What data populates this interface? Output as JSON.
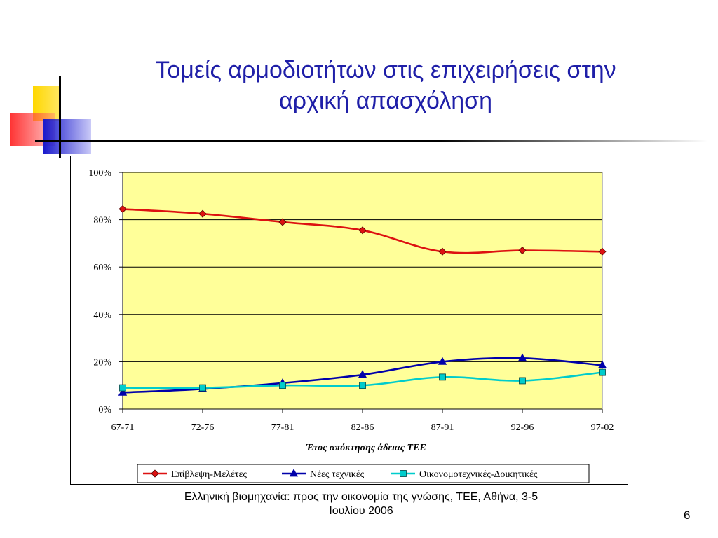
{
  "slide": {
    "title_line1": "Τομείς αρμοδιοτήτων στις επιχειρήσεις στην",
    "title_line2": "αρχική απασχόληση",
    "footer_line1": "Ελληνική βιομηχανία: προς την οικονομία της γνώσης, ΤΕΕ, Αθήνα, 3-5",
    "footer_line2": "Ιουλίου 2006",
    "page_number": "6",
    "colors": {
      "title": "#1f1fa8",
      "deco_yellow": "#ffd700",
      "deco_red": "#ff3333",
      "deco_blue": "#2222cc"
    }
  },
  "chart_data": {
    "type": "line",
    "categories": [
      "67-71",
      "72-76",
      "77-81",
      "82-86",
      "87-91",
      "92-96",
      "97-02"
    ],
    "xlabel": "Έτος απόκτησης άδειας ΤΕΕ",
    "ylabel": "",
    "ylim": [
      0,
      100
    ],
    "yticks": [
      "0%",
      "20%",
      "40%",
      "60%",
      "80%",
      "100%"
    ],
    "ytick_values": [
      0,
      20,
      40,
      60,
      80,
      100
    ],
    "grid": true,
    "plot_background": "#ffff99",
    "legend_position": "bottom",
    "series": [
      {
        "name": "Επίβλεψη-Μελέτες",
        "color": "#dd1111",
        "marker": "diamond",
        "values": [
          84.5,
          82.5,
          79,
          75.5,
          66.5,
          67,
          66.5
        ]
      },
      {
        "name": "Νέες τεχνικές",
        "color": "#0000aa",
        "marker": "triangle",
        "values": [
          7,
          8.5,
          11,
          14.5,
          20,
          21.5,
          18.5
        ]
      },
      {
        "name": "Οικονομοτεχνικές-Δοικητικές",
        "color": "#00cccc",
        "marker": "square",
        "values": [
          9,
          9,
          10,
          10,
          13.5,
          12,
          15.5
        ]
      }
    ]
  }
}
